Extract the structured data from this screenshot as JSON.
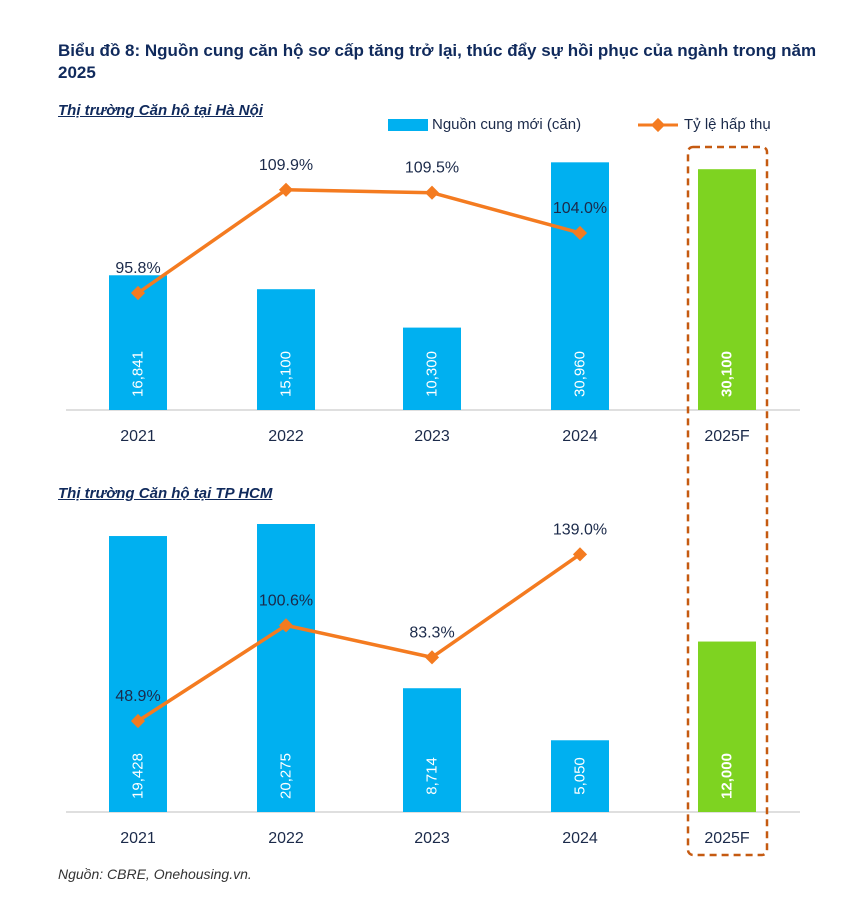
{
  "title": "Biểu đồ 8: Nguồn cung căn hộ sơ cấp tăng trở lại, thúc đẩy sự hồi phục của ngành trong năm 2025",
  "source": "Nguồn: CBRE, Onehousing.vn.",
  "legend": {
    "bar": "Nguồn cung mới (căn)",
    "line": "Tỷ lệ hấp thụ"
  },
  "colors": {
    "bar": "#00b0f0",
    "forecast": "#7ed321",
    "line": "#f47b20",
    "highlight": "#c55a11"
  },
  "chart_data": [
    {
      "type": "bar+line",
      "title": "Thị trường Căn hộ tại Hà Nội",
      "categories": [
        "2021",
        "2022",
        "2023",
        "2024",
        "2025F"
      ],
      "bar_values": [
        16841,
        15100,
        10300,
        30960,
        30100
      ],
      "bar_labels": [
        "16,841",
        "15,100",
        "10,300",
        "30,960",
        "30,100"
      ],
      "line_values": [
        95.8,
        109.9,
        109.5,
        104.0,
        null
      ],
      "line_labels": [
        "95.8%",
        "109.9%",
        "109.5%",
        "104.0%",
        ""
      ],
      "forecast_index": 4
    },
    {
      "type": "bar+line",
      "title": "Thị trường Căn hộ tại TP HCM",
      "categories": [
        "2021",
        "2022",
        "2023",
        "2024",
        "2025F"
      ],
      "bar_values": [
        19428,
        20275,
        8714,
        5050,
        12000
      ],
      "bar_labels": [
        "19,428",
        "20,275",
        "8,714",
        "5,050",
        "12,000"
      ],
      "line_values": [
        48.9,
        100.6,
        83.3,
        139.0,
        null
      ],
      "line_labels": [
        "48.9%",
        "100.6%",
        "83.3%",
        "139.0%",
        ""
      ],
      "forecast_index": 4
    }
  ]
}
